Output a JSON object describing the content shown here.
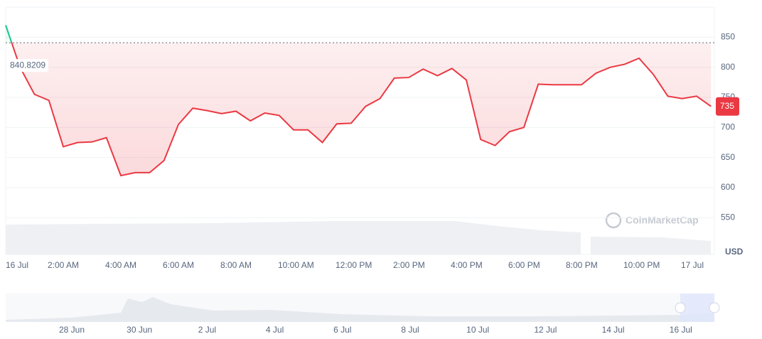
{
  "chart_data": {
    "type": "line",
    "categories": [
      "16 Jul",
      null,
      null,
      null,
      "2:00 AM",
      null,
      null,
      null,
      "4:00 AM",
      null,
      null,
      null,
      "6:00 AM",
      null,
      null,
      null,
      "8:00 AM",
      null,
      null,
      null,
      "10:00 AM",
      null,
      null,
      null,
      "12:00 PM",
      null,
      null,
      null,
      "2:00 PM",
      null,
      null,
      null,
      "4:00 PM",
      null,
      null,
      null,
      "6:00 PM",
      null,
      null,
      null,
      "8:00 PM",
      null,
      null,
      null,
      "10:00 PM",
      null,
      null,
      null,
      "17 Jul",
      null
    ],
    "series": [
      {
        "name": "Price",
        "values": [
          870,
          800,
          755,
          745,
          668,
          675,
          676,
          683,
          620,
          625,
          625,
          645,
          705,
          732,
          728,
          723,
          727,
          711,
          724,
          720,
          696,
          696,
          675,
          706,
          707,
          735,
          748,
          782,
          783,
          797,
          786,
          798,
          779,
          680,
          670,
          693,
          700,
          772,
          771,
          771,
          771,
          790,
          800,
          805,
          815,
          788,
          752,
          748,
          752,
          735
        ]
      }
    ],
    "baseline": 840.8209,
    "up_color": "#16c784",
    "down_color": "#ea3943",
    "ylim": [
      489,
      900
    ],
    "yticks": [
      550,
      600,
      650,
      700,
      750,
      800,
      850
    ],
    "y_label": "USD",
    "grid": true,
    "watermark": "CoinMarketCap",
    "navigator_labels": [
      "28 Jun",
      "30 Jun",
      "2 Jul",
      "4 Jul",
      "6 Jul",
      "8 Jul",
      "10 Jul",
      "12 Jul",
      "14 Jul",
      "16 Jul"
    ]
  }
}
